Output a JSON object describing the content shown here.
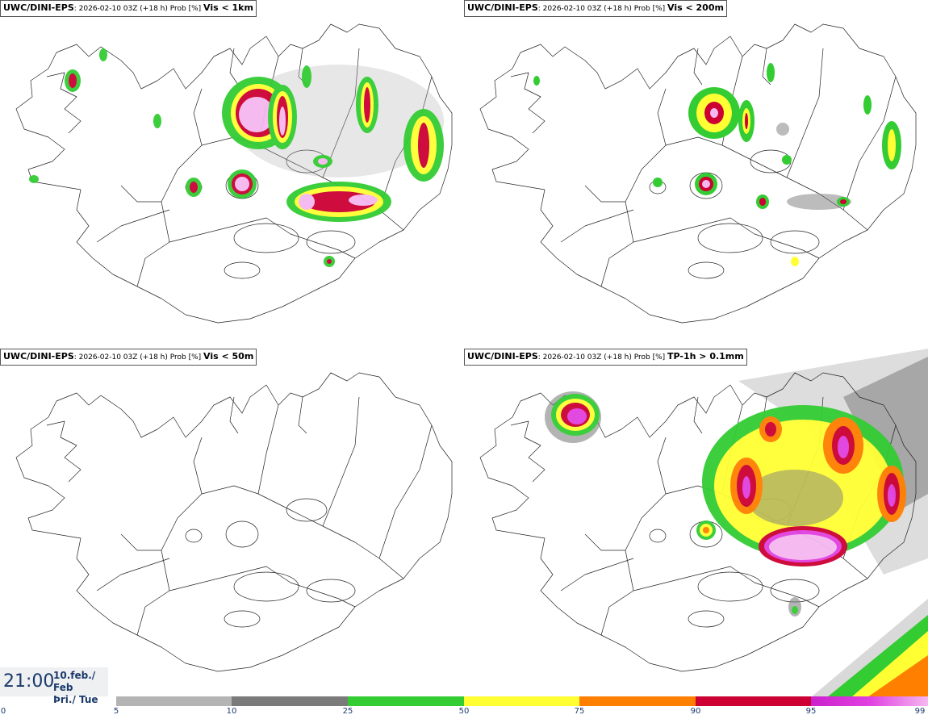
{
  "panels": [
    {
      "model": "UWC/DINI-EPS",
      "meta": ": 2026-02-10 03Z (+18 h) Prob [%] ",
      "variable": "Vis < 1km"
    },
    {
      "model": "UWC/DINI-EPS",
      "meta": ": 2026-02-10 03Z (+18 h) Prob [%] ",
      "variable": "Vis < 200m"
    },
    {
      "model": "UWC/DINI-EPS",
      "meta": ": 2026-02-10 03Z (+18 h) Prob [%] ",
      "variable": "Vis < 50m"
    },
    {
      "model": "UWC/DINI-EPS",
      "meta": ": 2026-02-10 03Z (+18 h) Prob [%] ",
      "variable": "TP-1h > 0.1mm"
    }
  ],
  "valid_time": {
    "time": "21:00",
    "date_line1": "10.feb./ Feb",
    "date_line2": "Þri./ Tue"
  },
  "legend": {
    "ticks": [
      "0",
      "5",
      "10",
      "25",
      "50",
      "75",
      "90",
      "95",
      "99"
    ],
    "colors": {
      "c5": "#b4b4b4",
      "c10": "#7a7a7a",
      "c25": "#33cc33",
      "c50": "#ffff33",
      "c75": "#ff7f00",
      "c90": "#cc0033",
      "c95": "#e040e0",
      "c99": "#f5b8f0"
    }
  }
}
